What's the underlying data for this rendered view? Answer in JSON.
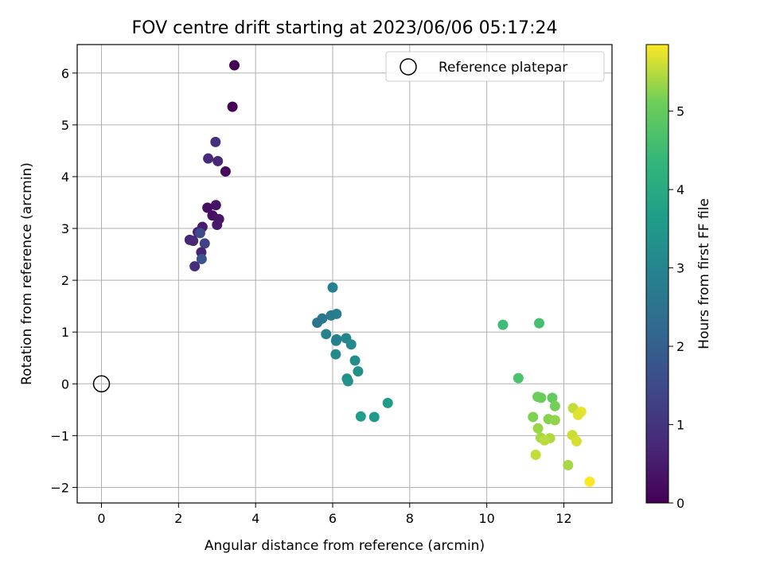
{
  "chart_data": {
    "type": "scatter",
    "title": "FOV centre drift starting at 2023/06/06 05:17:24",
    "xlabel": "Angular distance from reference (arcmin)",
    "ylabel": "Rotation from reference (arcmin)",
    "xlim": [
      -0.63,
      13.25
    ],
    "ylim": [
      -2.3,
      6.55
    ],
    "xticks": [
      0,
      2,
      4,
      6,
      8,
      10,
      12
    ],
    "yticks": [
      -2,
      -1,
      0,
      1,
      2,
      3,
      4,
      5,
      6
    ],
    "grid": true,
    "legend": {
      "placement": "top-right",
      "entries": [
        "Reference platepar"
      ]
    },
    "reference_point": {
      "x": 0,
      "y": 0
    },
    "colorbar": {
      "label": "Hours from first FF file",
      "colormap": "viridis",
      "range": [
        0,
        5.85
      ],
      "ticks": [
        0,
        1,
        2,
        3,
        4,
        5
      ]
    },
    "points": [
      {
        "x": 3.45,
        "y": 6.15,
        "c": 0.0
      },
      {
        "x": 3.4,
        "y": 5.35,
        "c": 0.05
      },
      {
        "x": 3.22,
        "y": 4.1,
        "c": 0.15
      },
      {
        "x": 2.96,
        "y": 4.67,
        "c": 0.9
      },
      {
        "x": 2.77,
        "y": 4.35,
        "c": 0.8
      },
      {
        "x": 3.02,
        "y": 4.3,
        "c": 0.75
      },
      {
        "x": 2.75,
        "y": 3.4,
        "c": 0.25
      },
      {
        "x": 2.97,
        "y": 3.45,
        "c": 0.35
      },
      {
        "x": 2.88,
        "y": 3.25,
        "c": 0.3
      },
      {
        "x": 3.05,
        "y": 3.18,
        "c": 0.4
      },
      {
        "x": 3.0,
        "y": 3.07,
        "c": 0.45
      },
      {
        "x": 2.62,
        "y": 3.03,
        "c": 0.55
      },
      {
        "x": 2.5,
        "y": 2.93,
        "c": 0.6
      },
      {
        "x": 2.56,
        "y": 2.91,
        "c": 1.5
      },
      {
        "x": 2.29,
        "y": 2.78,
        "c": 0.7
      },
      {
        "x": 2.38,
        "y": 2.76,
        "c": 0.75
      },
      {
        "x": 2.68,
        "y": 2.71,
        "c": 1.3
      },
      {
        "x": 2.59,
        "y": 2.54,
        "c": 0.65
      },
      {
        "x": 2.6,
        "y": 2.41,
        "c": 1.7
      },
      {
        "x": 2.42,
        "y": 2.27,
        "c": 0.85
      },
      {
        "x": 6.0,
        "y": 1.86,
        "c": 2.9
      },
      {
        "x": 6.1,
        "y": 1.35,
        "c": 2.8
      },
      {
        "x": 5.96,
        "y": 1.32,
        "c": 2.75
      },
      {
        "x": 5.73,
        "y": 1.26,
        "c": 2.65
      },
      {
        "x": 5.6,
        "y": 1.18,
        "c": 2.6
      },
      {
        "x": 5.83,
        "y": 0.96,
        "c": 2.95
      },
      {
        "x": 6.35,
        "y": 0.88,
        "c": 3.0
      },
      {
        "x": 6.1,
        "y": 0.86,
        "c": 3.05
      },
      {
        "x": 6.09,
        "y": 0.83,
        "c": 2.85
      },
      {
        "x": 6.48,
        "y": 0.76,
        "c": 3.1
      },
      {
        "x": 6.08,
        "y": 0.57,
        "c": 3.15
      },
      {
        "x": 6.58,
        "y": 0.45,
        "c": 3.2
      },
      {
        "x": 6.66,
        "y": 0.24,
        "c": 3.3
      },
      {
        "x": 6.37,
        "y": 0.1,
        "c": 3.25
      },
      {
        "x": 6.4,
        "y": 0.05,
        "c": 3.35
      },
      {
        "x": 7.43,
        "y": -0.37,
        "c": 3.6
      },
      {
        "x": 6.73,
        "y": -0.63,
        "c": 3.65
      },
      {
        "x": 7.08,
        "y": -0.64,
        "c": 3.55
      },
      {
        "x": 10.42,
        "y": 1.14,
        "c": 4.5
      },
      {
        "x": 11.36,
        "y": 1.17,
        "c": 4.6
      },
      {
        "x": 10.82,
        "y": 0.11,
        "c": 4.7
      },
      {
        "x": 11.32,
        "y": -0.25,
        "c": 5.1
      },
      {
        "x": 11.41,
        "y": -0.27,
        "c": 5.05
      },
      {
        "x": 11.7,
        "y": -0.27,
        "c": 5.0
      },
      {
        "x": 11.77,
        "y": -0.43,
        "c": 5.15
      },
      {
        "x": 12.24,
        "y": -0.47,
        "c": 5.55
      },
      {
        "x": 12.45,
        "y": -0.54,
        "c": 5.75
      },
      {
        "x": 12.37,
        "y": -0.6,
        "c": 5.7
      },
      {
        "x": 11.2,
        "y": -0.64,
        "c": 5.2
      },
      {
        "x": 11.6,
        "y": -0.68,
        "c": 5.25
      },
      {
        "x": 11.77,
        "y": -0.7,
        "c": 5.3
      },
      {
        "x": 11.33,
        "y": -0.86,
        "c": 5.35
      },
      {
        "x": 12.22,
        "y": -0.99,
        "c": 5.6
      },
      {
        "x": 11.4,
        "y": -1.04,
        "c": 5.4
      },
      {
        "x": 11.64,
        "y": -1.05,
        "c": 5.45
      },
      {
        "x": 11.5,
        "y": -1.09,
        "c": 5.5
      },
      {
        "x": 12.33,
        "y": -1.11,
        "c": 5.65
      },
      {
        "x": 11.27,
        "y": -1.37,
        "c": 5.55
      },
      {
        "x": 12.11,
        "y": -1.57,
        "c": 5.4
      },
      {
        "x": 12.67,
        "y": -1.89,
        "c": 5.85
      }
    ]
  }
}
